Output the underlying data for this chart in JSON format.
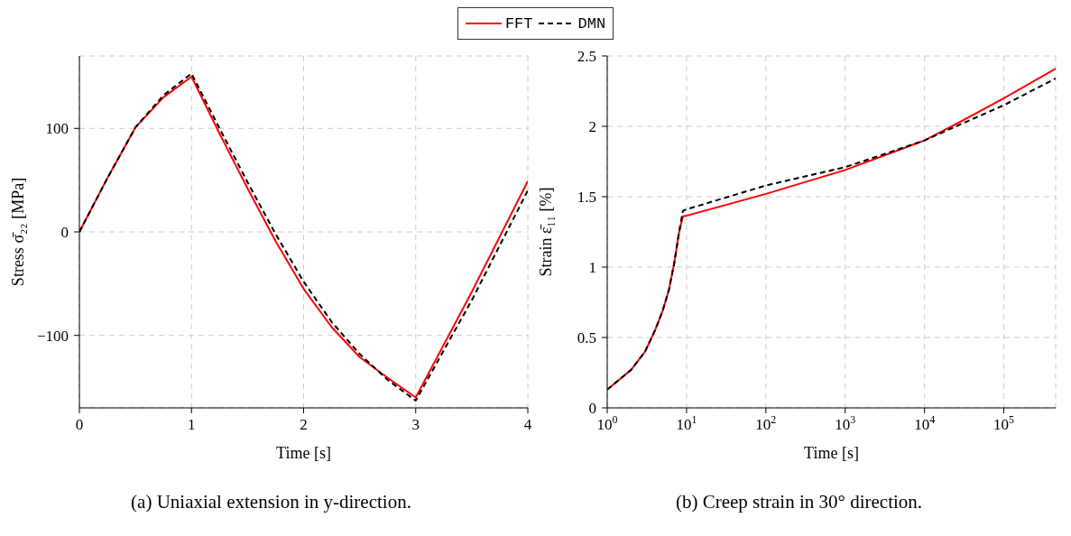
{
  "chart_data": [
    {
      "type": "line",
      "title": "(a) Uniaxial extension in y-direction.",
      "xlabel": "Time [s]",
      "ylabel": "Stress σ̄₂₂ [MPa]",
      "xlim": [
        0,
        4
      ],
      "xticks": [
        0,
        1,
        2,
        3,
        4
      ],
      "ylim": [
        -170,
        170
      ],
      "yticks": [
        -100,
        0,
        100
      ],
      "grid": true,
      "legend": "top",
      "marker": "none",
      "series": [
        {
          "name": "FFT",
          "color": "#ff0000",
          "line_style": "solid",
          "x": [
            0,
            0.25,
            0.5,
            0.75,
            1,
            1.25,
            1.5,
            1.75,
            2,
            2.25,
            2.5,
            2.75,
            3,
            3.5,
            4
          ],
          "values": [
            0,
            52,
            101,
            130,
            150,
            95,
            42,
            -9,
            -55,
            -92,
            -121,
            -141,
            -160,
            -58,
            49
          ]
        },
        {
          "name": "DMN",
          "color": "#000000",
          "line_style": "dashed",
          "x": [
            0,
            0.25,
            0.5,
            0.75,
            1,
            1.25,
            1.5,
            1.75,
            2,
            2.25,
            2.5,
            2.75,
            3,
            3.5,
            4
          ],
          "values": [
            0,
            52,
            101,
            132,
            153,
            100,
            48,
            -2,
            -48,
            -87,
            -118,
            -143,
            -163,
            -66,
            40
          ]
        }
      ]
    },
    {
      "type": "line",
      "title": "(b) Creep strain in 30° direction.",
      "xlabel": "Time [s]",
      "ylabel": "Strain ε̄₁₁ [%]",
      "log": "x",
      "xlim": [
        1,
        450000
      ],
      "xticks": [
        {
          "value": 1,
          "label": "10$^{0}$"
        },
        {
          "value": 10,
          "label": "10$^{1}$"
        },
        {
          "value": 100,
          "label": "10$^{2}$"
        },
        {
          "value": 1000,
          "label": "10$^{3}$"
        },
        {
          "value": 10000,
          "label": "10$^{4}$"
        },
        {
          "value": 100000,
          "label": "10$^{5}$"
        }
      ],
      "ylim": [
        0,
        2.5
      ],
      "yticks": [
        0,
        0.5,
        1,
        1.5,
        2,
        2.5
      ],
      "grid": true,
      "marker": "none",
      "series": [
        {
          "color": "#ff0000",
          "line_style": "solid",
          "x": [
            1,
            2,
            3,
            4,
            5,
            6,
            7,
            8,
            9,
            10,
            100,
            1000,
            3000,
            10000,
            30000,
            100000,
            450000
          ],
          "values": [
            0.13,
            0.27,
            0.4,
            0.55,
            0.69,
            0.84,
            1.03,
            1.24,
            1.36,
            1.365,
            1.52,
            1.69,
            1.79,
            1.9,
            2.04,
            2.2,
            2.41
          ]
        },
        {
          "color": "#000000",
          "line_style": "dashed",
          "x": [
            1,
            2,
            3,
            4,
            5,
            6,
            7,
            8,
            9,
            10,
            100,
            1000,
            3000,
            10000,
            30000,
            100000,
            450000
          ],
          "values": [
            0.13,
            0.27,
            0.4,
            0.55,
            0.69,
            0.84,
            1.03,
            1.24,
            1.4,
            1.41,
            1.58,
            1.71,
            1.8,
            1.9,
            2.02,
            2.15,
            2.34
          ]
        }
      ]
    }
  ]
}
